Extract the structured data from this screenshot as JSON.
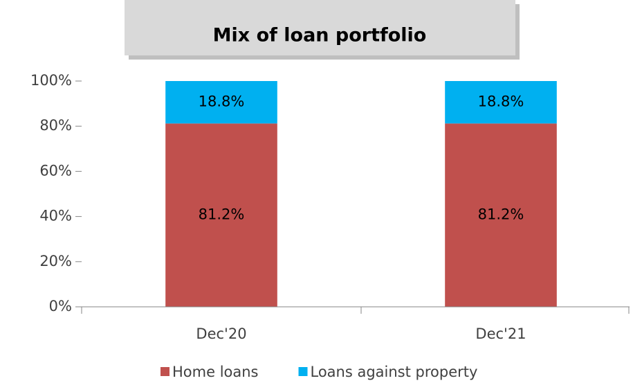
{
  "chart_data": {
    "type": "stacked_bar",
    "title": "Mix of loan portfolio",
    "categories": [
      "Dec'20",
      "Dec'21"
    ],
    "series": [
      {
        "name": "Home loans",
        "color": "#c0504d",
        "values": [
          81.2,
          81.2
        ],
        "value_labels": [
          "81.2%",
          "81.2%"
        ]
      },
      {
        "name": "Loans against property",
        "color": "#00b0f0",
        "values": [
          18.8,
          18.8
        ],
        "value_labels": [
          "18.8%",
          "18.8%"
        ]
      }
    ],
    "ylim": [
      0,
      100
    ],
    "yticks": [
      {
        "value": 0,
        "label": "0%"
      },
      {
        "value": 20,
        "label": "20%"
      },
      {
        "value": 40,
        "label": "40%"
      },
      {
        "value": 60,
        "label": "60%"
      },
      {
        "value": 80,
        "label": "80%"
      },
      {
        "value": 100,
        "label": "100%"
      }
    ],
    "legend": "bottom"
  }
}
